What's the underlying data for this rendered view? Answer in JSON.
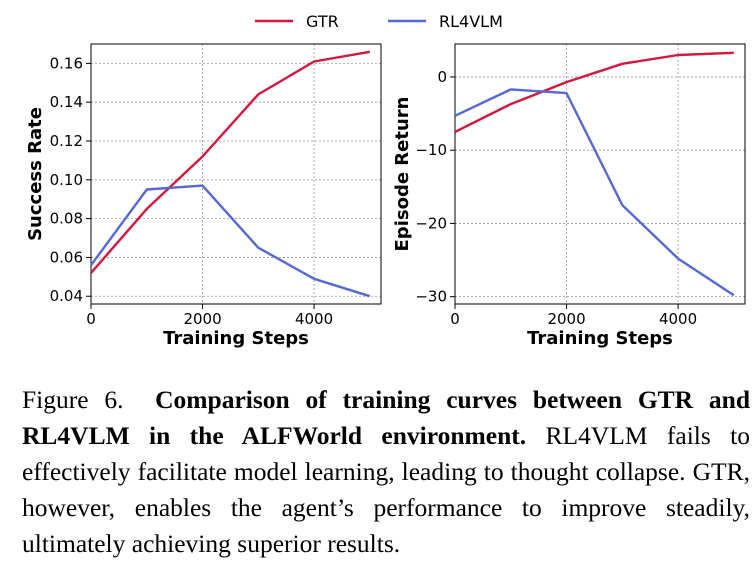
{
  "legend": [
    {
      "name": "GTR",
      "color": "#d6163f"
    },
    {
      "name": "RL4VLM",
      "color": "#5468d6"
    }
  ],
  "chart_data": [
    {
      "type": "line",
      "xlabel": "Training Steps",
      "ylabel": "Success Rate",
      "xlim": [
        0,
        5200
      ],
      "ylim": [
        0.036,
        0.17
      ],
      "xticks": [
        0,
        2000,
        4000
      ],
      "xtick_labels": [
        "0",
        "2000",
        "4000"
      ],
      "yticks": [
        0.04,
        0.06,
        0.08,
        0.1,
        0.12,
        0.14,
        0.16
      ],
      "ytick_labels": [
        "0.04",
        "0.06",
        "0.08",
        "0.10",
        "0.12",
        "0.14",
        "0.16"
      ],
      "grid": true,
      "series": [
        {
          "name": "GTR",
          "color": "#d6163f",
          "x": [
            0,
            1000,
            2000,
            3000,
            4000,
            5000
          ],
          "y": [
            0.052,
            0.085,
            0.112,
            0.144,
            0.161,
            0.166
          ]
        },
        {
          "name": "RL4VLM",
          "color": "#5468d6",
          "x": [
            0,
            1000,
            2000,
            3000,
            4000,
            5000
          ],
          "y": [
            0.056,
            0.095,
            0.097,
            0.065,
            0.049,
            0.04
          ]
        }
      ]
    },
    {
      "type": "line",
      "xlabel": "Training Steps",
      "ylabel": "Episode Return",
      "xlim": [
        0,
        5200
      ],
      "ylim": [
        -31,
        4.5
      ],
      "xticks": [
        0,
        2000,
        4000
      ],
      "xtick_labels": [
        "0",
        "2000",
        "4000"
      ],
      "yticks": [
        0,
        -10,
        -20,
        -30
      ],
      "ytick_labels": [
        "0",
        "−10",
        "−20",
        "−30"
      ],
      "grid": true,
      "series": [
        {
          "name": "GTR",
          "color": "#d6163f",
          "x": [
            0,
            1000,
            2000,
            3000,
            4000,
            5000
          ],
          "y": [
            -7.5,
            -3.7,
            -0.7,
            1.8,
            3.0,
            3.3
          ]
        },
        {
          "name": "RL4VLM",
          "color": "#5468d6",
          "x": [
            0,
            1000,
            2000,
            3000,
            4000,
            5000
          ],
          "y": [
            -5.3,
            -1.7,
            -2.2,
            -17.5,
            -24.8,
            -29.8
          ]
        }
      ]
    }
  ],
  "caption": {
    "figure_label": "Figure 6.",
    "bold_text": "Comparison of training curves between GTR and RL4VLM in the ALFWorld environment.",
    "body_text": "RL4VLM fails to effectively facilitate model learning, leading to thought collapse. GTR, however, enables the agent’s performance to improve steadily, ultimately achieving superior results."
  }
}
